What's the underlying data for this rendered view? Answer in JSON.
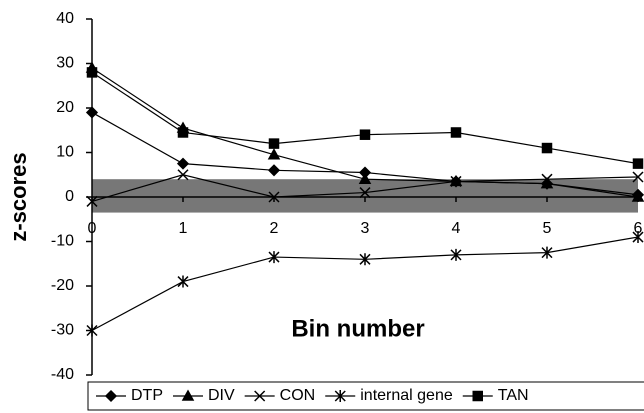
{
  "chart_data": {
    "type": "line",
    "x_label": "Bin number",
    "y_label": "z-scores",
    "x": [
      0,
      1,
      2,
      3,
      4,
      5,
      6
    ],
    "xlim": [
      0,
      6
    ],
    "xticks": [
      0,
      1,
      2,
      3,
      4,
      5,
      6
    ],
    "ylim": [
      -40,
      40
    ],
    "yticks": [
      -40,
      -30,
      -20,
      -10,
      0,
      10,
      20,
      30,
      40
    ],
    "shaded_band": [
      -3.5,
      4
    ],
    "band_color": "#777777",
    "legend": "bottom",
    "series": [
      {
        "name": "DTP",
        "color": "#000000",
        "marker": "diamond",
        "values": [
          19,
          7.5,
          6,
          5.5,
          3.5,
          3,
          0.5
        ]
      },
      {
        "name": "DIV",
        "color": "#000000",
        "marker": "triangle",
        "values": [
          29,
          15.5,
          9.5,
          4,
          3.5,
          3,
          0
        ]
      },
      {
        "name": "CON",
        "color": "#000000",
        "marker": "x",
        "values": [
          -1,
          5,
          0,
          1,
          3.5,
          4,
          4.5
        ]
      },
      {
        "name": "internal gene",
        "color": "#000000",
        "marker": "asterisk",
        "values": [
          -30,
          -19,
          -13.5,
          -14,
          -13,
          -12.5,
          -9
        ]
      },
      {
        "name": "TAN",
        "color": "#000000",
        "marker": "square",
        "values": [
          28,
          14.5,
          12,
          14,
          14.5,
          11,
          7.5
        ]
      }
    ]
  }
}
